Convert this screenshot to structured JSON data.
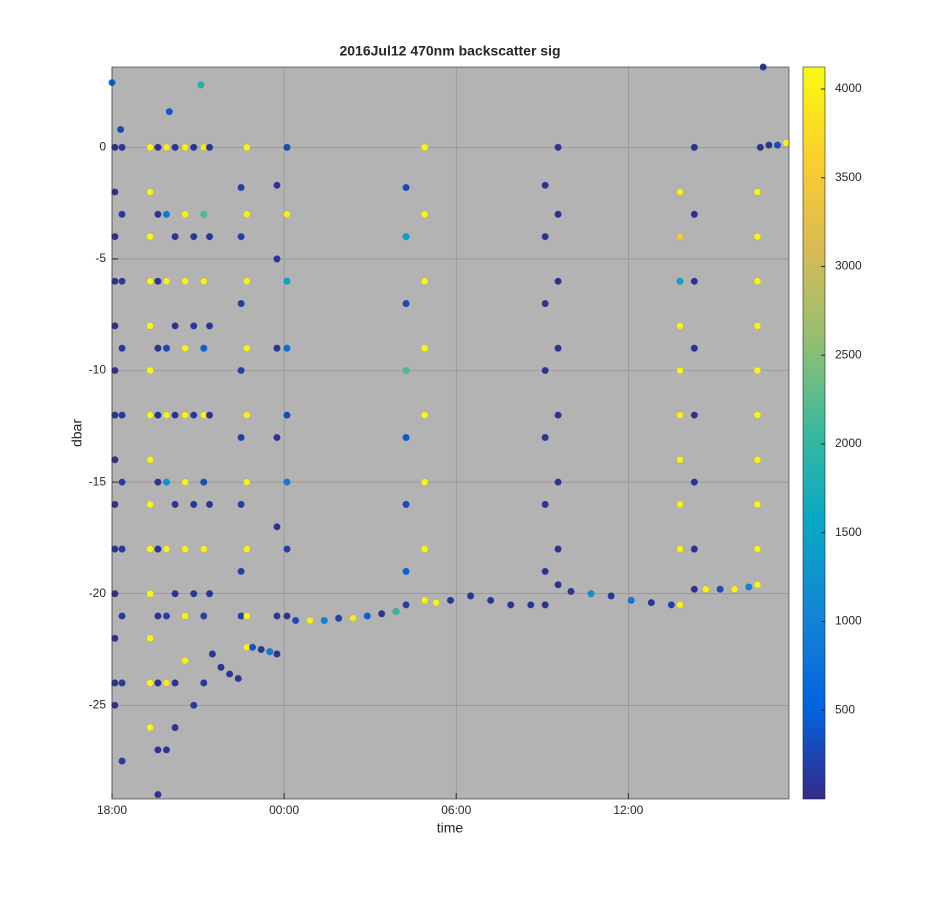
{
  "chart_data": {
    "type": "scatter",
    "title": "2016Jul12 470nm backscatter sig",
    "x_label": "time",
    "y_label": "dbar",
    "xlim": [
      18,
      41.6
    ],
    "ylim": [
      -29.2,
      3.6
    ],
    "clim": [
      0,
      4124
    ],
    "xticks": [
      {
        "value": 18,
        "label": "18:00"
      },
      {
        "value": 24,
        "label": "00:00"
      },
      {
        "value": 30,
        "label": "06:00"
      },
      {
        "value": 36,
        "label": "12:00"
      }
    ],
    "yticks": [
      0,
      -5,
      -10,
      -15,
      -20,
      -25
    ],
    "cticks": [
      500,
      1000,
      1500,
      2000,
      2500,
      3000,
      3500,
      4000
    ],
    "grid": true,
    "background": "#b3b3b3",
    "colormap": [
      "#352a87",
      "#0363e1",
      "#1485d4",
      "#06a7c6",
      "#38b99e",
      "#92bf73",
      "#d9ba56",
      "#fcce2e",
      "#f9fb0e"
    ],
    "x": [
      18.1,
      18.1,
      18.1,
      18.1,
      18.1,
      18.1,
      18.1,
      18.1,
      18.1,
      18.1,
      18.1,
      18.1,
      18.1,
      18.1,
      18.35,
      18.35,
      18.35,
      18.35,
      18.35,
      18.35,
      18.35,
      18.35,
      18.35,
      18.35,
      19.33,
      19.33,
      19.33,
      19.33,
      19.33,
      19.33,
      19.33,
      19.33,
      19.33,
      19.33,
      19.33,
      19.33,
      19.33,
      19.33,
      19.6,
      19.6,
      19.6,
      19.6,
      19.6,
      19.6,
      19.6,
      19.6,
      19.6,
      19.6,
      19.6,
      19.9,
      19.9,
      19.9,
      19.9,
      19.9,
      19.9,
      19.9,
      19.9,
      19.9,
      19.9,
      20.2,
      20.2,
      20.2,
      20.2,
      20.2,
      20.2,
      20.2,
      20.2,
      20.55,
      20.55,
      20.55,
      20.55,
      20.55,
      20.55,
      20.55,
      20.55,
      20.55,
      20.85,
      20.85,
      20.85,
      20.85,
      20.85,
      20.85,
      20.85,
      21.2,
      21.2,
      21.2,
      21.2,
      21.2,
      21.2,
      21.2,
      21.2,
      21.2,
      21.4,
      21.4,
      21.4,
      21.4,
      21.4,
      21.4,
      21.5,
      21.8,
      22.1,
      22.4,
      22.5,
      22.5,
      22.5,
      22.5,
      22.5,
      22.5,
      22.5,
      22.5,
      22.7,
      22.7,
      22.7,
      22.7,
      22.7,
      22.7,
      22.7,
      22.7,
      22.7,
      22.9,
      23.2,
      23.5,
      23.75,
      23.75,
      23.75,
      23.75,
      23.75,
      23.75,
      23.75,
      24.1,
      24.1,
      24.1,
      24.1,
      24.1,
      24.1,
      24.1,
      24.1,
      24.4,
      24.9,
      25.4,
      25.9,
      26.4,
      26.9,
      27.4,
      27.9,
      28.25,
      28.25,
      28.25,
      28.25,
      28.25,
      28.25,
      28.25,
      28.25,
      28.9,
      28.9,
      28.9,
      28.9,
      28.9,
      28.9,
      28.9,
      28.9,
      29.3,
      29.8,
      30.5,
      31.2,
      31.9,
      32.6,
      33.1,
      33.1,
      33.1,
      33.1,
      33.1,
      33.1,
      33.1,
      33.1,
      33.55,
      33.55,
      33.55,
      33.55,
      33.55,
      33.55,
      33.55,
      33.55,
      34.0,
      34.7,
      35.4,
      36.1,
      36.8,
      37.5,
      37.8,
      37.8,
      37.8,
      37.8,
      37.8,
      37.8,
      37.8,
      37.8,
      37.8,
      37.8,
      38.3,
      38.3,
      38.3,
      38.3,
      38.3,
      38.3,
      38.3,
      38.3,
      38.7,
      39.2,
      39.7,
      40.2,
      40.5,
      40.5,
      40.5,
      40.5,
      40.5,
      40.5,
      40.5,
      40.5,
      40.5,
      40.5,
      40.6,
      40.9,
      41.2,
      41.5,
      18.0,
      18.3,
      21.1,
      20.0,
      40.7
    ],
    "y": [
      0,
      -2,
      -4,
      -6,
      -8,
      -10,
      -12,
      -14,
      -16,
      -18,
      -20,
      -22,
      -24,
      -25,
      0,
      -3,
      -6,
      -9,
      -12,
      -15,
      -18,
      -21,
      -24,
      -27.5,
      0,
      -2,
      -4,
      -6,
      -8,
      -10,
      -12,
      -14,
      -16,
      -18,
      -20,
      -22,
      -24,
      -26,
      0,
      -3,
      -6,
      -9,
      -12,
      -15,
      -18,
      -21,
      -24,
      -27,
      -29,
      0,
      -3,
      -6,
      -9,
      -12,
      -15,
      -18,
      -21,
      -24,
      -27,
      0,
      -4,
      -8,
      -12,
      -16,
      -20,
      -24,
      -26,
      0,
      -3,
      -6,
      -9,
      -12,
      -15,
      -18,
      -21,
      -23,
      0,
      -4,
      -8,
      -12,
      -16,
      -20,
      -25,
      0,
      -3,
      -6,
      -9,
      -12,
      -15,
      -18,
      -21,
      -24,
      0,
      -4,
      -8,
      -12,
      -16,
      -20,
      -22.7,
      -23.3,
      -23.6,
      -23.8,
      -1.8,
      -4,
      -7,
      -10,
      -13,
      -16,
      -19,
      -21,
      0,
      -3,
      -6,
      -9,
      -12,
      -15,
      -18,
      -21,
      -22.4,
      -22.4,
      -22.5,
      -22.6,
      -22.7,
      -1.7,
      -5,
      -9,
      -13,
      -17,
      -21,
      0,
      -3,
      -6,
      -9,
      -12,
      -15,
      -18,
      -21,
      -21.2,
      -21.2,
      -21.2,
      -21.1,
      -21.1,
      -21.0,
      -20.9,
      -20.8,
      -1.8,
      -4,
      -7,
      -10,
      -13,
      -16,
      -19,
      -20.5,
      0,
      -3,
      -6,
      -9,
      -12,
      -15,
      -18,
      -20.3,
      -20.4,
      -20.3,
      -20.1,
      -20.3,
      -20.5,
      -20.5,
      -1.7,
      -4,
      -7,
      -10,
      -13,
      -16,
      -19,
      -20.5,
      0,
      -3,
      -6,
      -9,
      -12,
      -15,
      -18,
      -19.6,
      -19.9,
      -20.0,
      -20.1,
      -20.3,
      -20.4,
      -20.5,
      -2,
      -4,
      -6,
      -8,
      -10,
      -12,
      -14,
      -16,
      -18,
      -20.5,
      0,
      -3,
      -6,
      -9,
      -12,
      -15,
      -18,
      -19.8,
      -19.8,
      -19.8,
      -19.8,
      -19.7,
      -2,
      -4,
      -6,
      -8,
      -10,
      -12,
      -14,
      -16,
      -18,
      -19.6,
      0,
      0.1,
      0.1,
      0.2,
      2.9,
      0.8,
      2.8,
      1.6,
      3.6
    ],
    "c": [
      60,
      60,
      60,
      60,
      60,
      60,
      60,
      60,
      60,
      60,
      60,
      60,
      60,
      60,
      150,
      150,
      150,
      150,
      150,
      150,
      150,
      150,
      150,
      150,
      4050,
      4050,
      4050,
      4050,
      4050,
      4050,
      4050,
      4050,
      4050,
      4050,
      4050,
      4050,
      4050,
      4050,
      80,
      80,
      80,
      80,
      80,
      80,
      80,
      80,
      80,
      80,
      80,
      4000,
      900,
      4000,
      300,
      4000,
      1200,
      4000,
      200,
      3900,
      100,
      100,
      100,
      100,
      100,
      100,
      100,
      100,
      100,
      4000,
      4000,
      4000,
      4000,
      4000,
      4000,
      4000,
      4000,
      4000,
      120,
      120,
      120,
      120,
      120,
      120,
      120,
      3900,
      2200,
      4000,
      500,
      4000,
      300,
      4000,
      200,
      100,
      90,
      90,
      90,
      90,
      90,
      90,
      100,
      100,
      100,
      100,
      200,
      200,
      200,
      200,
      200,
      200,
      200,
      200,
      4000,
      4000,
      4000,
      4000,
      4000,
      4000,
      4000,
      4000,
      4000,
      400,
      100,
      900,
      100,
      100,
      100,
      100,
      100,
      100,
      100,
      300,
      4000,
      1500,
      700,
      300,
      900,
      200,
      100,
      300,
      4000,
      1000,
      200,
      3900,
      500,
      100,
      2000,
      300,
      1500,
      300,
      2200,
      400,
      300,
      500,
      200,
      4050,
      4050,
      4050,
      4050,
      4050,
      4050,
      4050,
      4050,
      4000,
      100,
      100,
      100,
      100,
      100,
      80,
      80,
      80,
      80,
      80,
      80,
      80,
      80,
      80,
      80,
      80,
      80,
      80,
      80,
      80,
      80,
      100,
      1200,
      100,
      800,
      100,
      200,
      4000,
      3500,
      1500,
      4000,
      4000,
      4000,
      4000,
      4000,
      4000,
      4000,
      80,
      80,
      80,
      80,
      80,
      80,
      80,
      80,
      4000,
      300,
      4000,
      1000,
      4050,
      4050,
      4050,
      4050,
      4050,
      4050,
      4050,
      4050,
      4050,
      4050,
      100,
      100,
      300,
      4000,
      600,
      300,
      1800,
      400,
      100
    ]
  }
}
